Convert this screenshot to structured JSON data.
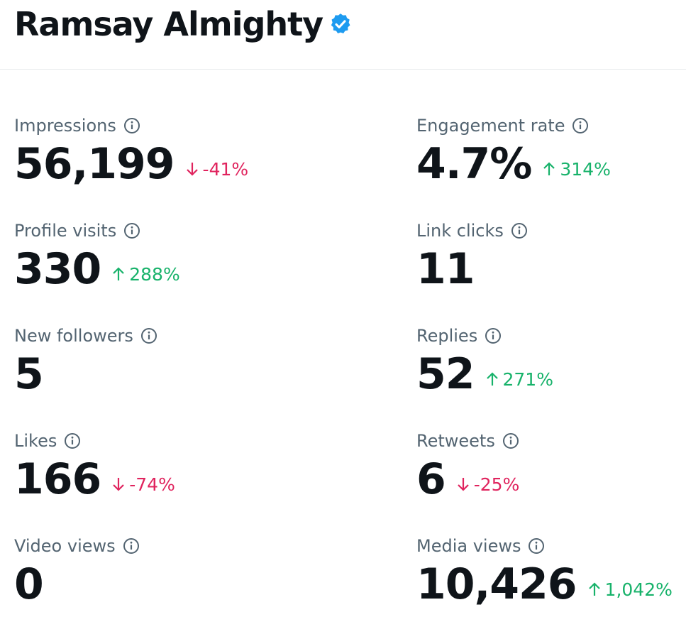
{
  "header": {
    "title": "Ramsay Almighty"
  },
  "metrics": [
    {
      "label": "Impressions",
      "value": "56,199",
      "change": "-41%"
    },
    {
      "label": "Engagement rate",
      "value": "4.7%",
      "change": "314%"
    },
    {
      "label": "Profile visits",
      "value": "330",
      "change": "288%"
    },
    {
      "label": "Link clicks",
      "value": "11"
    },
    {
      "label": "New followers",
      "value": "5"
    },
    {
      "label": "Replies",
      "value": "52",
      "change": "271%"
    },
    {
      "label": "Likes",
      "value": "166",
      "change": "-74%"
    },
    {
      "label": "Retweets",
      "value": "6",
      "change": "-25%"
    },
    {
      "label": "Video views",
      "value": "0"
    },
    {
      "label": "Media views",
      "value": "10,426",
      "change": "1,042%"
    }
  ]
}
